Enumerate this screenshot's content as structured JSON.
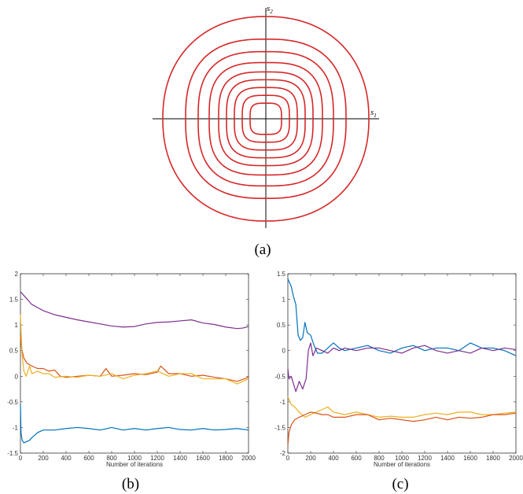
{
  "captions": {
    "a": "(a)",
    "b": "(b)",
    "c": "(c)"
  },
  "contour_panel": {
    "axis_x_symbol": "s",
    "axis_x_sub": "1",
    "axis_y_symbol": "s",
    "axis_y_sub": "2"
  },
  "chart_data": [
    {
      "type": "line",
      "panel": "b",
      "xlabel": "Number of iterations",
      "ylabel": "",
      "xlim": [
        0,
        2000
      ],
      "ylim": [
        -1.5,
        2
      ],
      "xticks": [
        0,
        200,
        400,
        600,
        800,
        1000,
        1200,
        1400,
        1600,
        1800,
        2000
      ],
      "yticks": [
        -1.5,
        -1,
        -0.5,
        0,
        0.5,
        1,
        1.5,
        2
      ],
      "series": [
        {
          "color": "#7E2F8E",
          "x": [
            0,
            20,
            60,
            100,
            200,
            300,
            400,
            500,
            600,
            700,
            800,
            900,
            1000,
            1100,
            1200,
            1300,
            1400,
            1500,
            1600,
            1700,
            1800,
            1900,
            1950,
            2000
          ],
          "y": [
            1.65,
            1.6,
            1.5,
            1.4,
            1.28,
            1.2,
            1.15,
            1.1,
            1.06,
            1.02,
            0.98,
            0.96,
            0.97,
            1.02,
            1.05,
            1.06,
            1.08,
            1.1,
            1.04,
            1.01,
            0.96,
            0.93,
            0.94,
            0.97
          ]
        },
        {
          "color": "#D95319",
          "x": [
            0,
            10,
            30,
            60,
            100,
            150,
            200,
            250,
            300,
            350,
            400,
            500,
            600,
            700,
            750,
            800,
            900,
            1000,
            1100,
            1200,
            1230,
            1300,
            1400,
            1500,
            1600,
            1700,
            1800,
            1900,
            2000
          ],
          "y": [
            0.8,
            0.55,
            0.35,
            0.25,
            0.2,
            0.15,
            0.15,
            0.1,
            0.12,
            0.0,
            -0.02,
            0.0,
            0.02,
            0.0,
            0.15,
            0.0,
            0.02,
            0.05,
            0.03,
            0.08,
            0.2,
            0.05,
            0.05,
            0.0,
            0.02,
            -0.02,
            -0.05,
            -0.1,
            -0.02
          ]
        },
        {
          "color": "#EDB120",
          "x": [
            0,
            5,
            15,
            30,
            50,
            80,
            100,
            150,
            200,
            250,
            300,
            400,
            500,
            600,
            700,
            800,
            900,
            1000,
            1100,
            1200,
            1300,
            1400,
            1500,
            1600,
            1700,
            1800,
            1900,
            2000
          ],
          "y": [
            1.2,
            0.9,
            0.4,
            0.1,
            0.0,
            0.2,
            0.05,
            0.1,
            0.05,
            0.05,
            -0.02,
            0.0,
            -0.02,
            0.02,
            0.0,
            0.05,
            -0.05,
            0.02,
            0.05,
            0.1,
            0.0,
            0.05,
            0.05,
            -0.05,
            -0.05,
            -0.05,
            -0.15,
            -0.05
          ]
        },
        {
          "color": "#0072BD",
          "x": [
            0,
            5,
            15,
            30,
            50,
            80,
            100,
            150,
            200,
            300,
            400,
            500,
            600,
            700,
            800,
            900,
            1000,
            1100,
            1200,
            1300,
            1400,
            1500,
            1600,
            1700,
            1800,
            1900,
            2000
          ],
          "y": [
            -0.55,
            -1.1,
            -1.25,
            -1.3,
            -1.28,
            -1.25,
            -1.2,
            -1.1,
            -1.05,
            -1.05,
            -1.02,
            -1.0,
            -1.02,
            -1.05,
            -1.0,
            -1.05,
            -1.02,
            -1.05,
            -1.02,
            -1.0,
            -1.04,
            -1.05,
            -1.02,
            -1.05,
            -1.04,
            -1.02,
            -1.05
          ]
        }
      ]
    },
    {
      "type": "line",
      "panel": "c",
      "xlabel": "Number of iterations",
      "ylabel": "",
      "xlim": [
        0,
        2000
      ],
      "ylim": [
        -2,
        1.5
      ],
      "xticks": [
        0,
        200,
        400,
        600,
        800,
        1000,
        1200,
        1400,
        1600,
        1800,
        2000
      ],
      "yticks": [
        -2,
        -1.5,
        -1,
        -0.5,
        0,
        0.5,
        1,
        1.5
      ],
      "series": [
        {
          "color": "#0072BD",
          "x": [
            0,
            10,
            30,
            50,
            70,
            90,
            110,
            130,
            150,
            170,
            200,
            230,
            260,
            300,
            350,
            400,
            450,
            500,
            600,
            700,
            800,
            900,
            1000,
            1100,
            1200,
            1300,
            1400,
            1500,
            1600,
            1700,
            1800,
            1900,
            2000
          ],
          "y": [
            1.4,
            1.35,
            1.25,
            1.05,
            0.9,
            0.3,
            0.2,
            0.25,
            0.55,
            0.35,
            0.3,
            0.1,
            -0.05,
            -0.05,
            0.05,
            0.15,
            0.05,
            0.0,
            0.05,
            0.1,
            0.0,
            -0.05,
            0.05,
            0.1,
            0.0,
            0.05,
            0.05,
            0.0,
            0.15,
            0.05,
            0.05,
            0.0,
            -0.1
          ]
        },
        {
          "color": "#7E2F8E",
          "x": [
            0,
            10,
            30,
            50,
            70,
            100,
            130,
            160,
            180,
            200,
            220,
            250,
            300,
            350,
            400,
            450,
            500,
            600,
            700,
            800,
            900,
            1000,
            1100,
            1200,
            1300,
            1400,
            1500,
            1600,
            1700,
            1800,
            1900,
            2000
          ],
          "y": [
            -0.35,
            -0.55,
            -0.5,
            -0.65,
            -0.8,
            -0.6,
            -0.75,
            -0.55,
            0.0,
            0.15,
            -0.1,
            0.05,
            0.0,
            -0.05,
            0.05,
            0.0,
            0.05,
            0.0,
            0.05,
            0.05,
            0.0,
            -0.05,
            0.05,
            0.1,
            0.0,
            -0.05,
            0.0,
            -0.05,
            0.05,
            0.0,
            0.05,
            0.02
          ]
        },
        {
          "color": "#EDB120",
          "x": [
            0,
            10,
            30,
            60,
            100,
            150,
            200,
            250,
            300,
            350,
            400,
            500,
            600,
            700,
            800,
            900,
            1000,
            1100,
            1200,
            1300,
            1400,
            1500,
            1600,
            1700,
            1800,
            1900,
            2000
          ],
          "y": [
            -0.9,
            -0.95,
            -1.05,
            -1.1,
            -1.2,
            -1.3,
            -1.25,
            -1.2,
            -1.15,
            -1.1,
            -1.2,
            -1.25,
            -1.2,
            -1.25,
            -1.3,
            -1.28,
            -1.3,
            -1.3,
            -1.25,
            -1.22,
            -1.25,
            -1.2,
            -1.2,
            -1.25,
            -1.25,
            -1.22,
            -1.2
          ]
        },
        {
          "color": "#D95319",
          "x": [
            0,
            10,
            30,
            60,
            100,
            150,
            200,
            250,
            300,
            350,
            400,
            500,
            600,
            700,
            800,
            900,
            1000,
            1100,
            1200,
            1300,
            1400,
            1500,
            1600,
            1700,
            1800,
            1900,
            2000
          ],
          "y": [
            -1.85,
            -1.6,
            -1.45,
            -1.35,
            -1.3,
            -1.25,
            -1.2,
            -1.22,
            -1.25,
            -1.25,
            -1.3,
            -1.3,
            -1.25,
            -1.25,
            -1.35,
            -1.32,
            -1.35,
            -1.38,
            -1.35,
            -1.3,
            -1.35,
            -1.3,
            -1.32,
            -1.3,
            -1.25,
            -1.25,
            -1.22
          ]
        }
      ]
    }
  ]
}
